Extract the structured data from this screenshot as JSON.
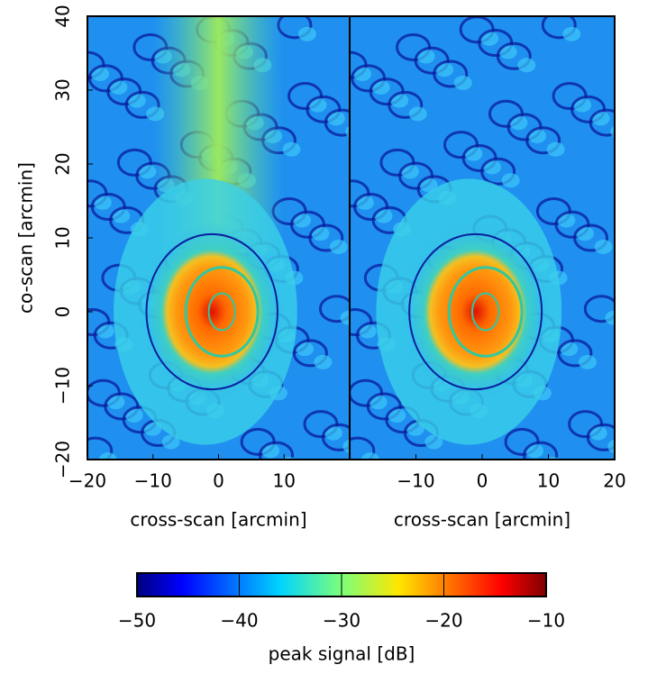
{
  "chart_data": [
    {
      "type": "heatmap",
      "xlabel": "cross-scan [arcmin]",
      "ylabel": "co-scan [arcmin]",
      "xlim": [
        -20,
        20
      ],
      "ylim": [
        -20,
        40
      ],
      "xticks": [
        {
          "value": -20,
          "label": "−20"
        },
        {
          "value": -10,
          "label": "−10"
        },
        0,
        10
      ],
      "yticks": [
        {
          "value": -20,
          "label": "−20"
        },
        {
          "value": -10,
          "label": "−10"
        },
        0,
        10,
        20,
        30,
        40
      ],
      "colormap": "jet"
    },
    {
      "type": "heatmap",
      "xlabel": "cross-scan [arcmin]",
      "xlim": [
        -20,
        20
      ],
      "ylim": [
        -20,
        40
      ],
      "xticks": [
        {
          "value": -10,
          "label": "−10"
        },
        0,
        10,
        20
      ],
      "colormap": "jet"
    }
  ],
  "colorbar": {
    "label": "peak signal [dB]",
    "lim": [
      -50,
      -10
    ],
    "ticks": [
      {
        "value": -50,
        "label": "−50"
      },
      {
        "value": -40,
        "label": "−40"
      },
      {
        "value": -30,
        "label": "−30"
      },
      {
        "value": -20,
        "label": "−20"
      },
      {
        "value": -10,
        "label": "−10"
      }
    ]
  }
}
